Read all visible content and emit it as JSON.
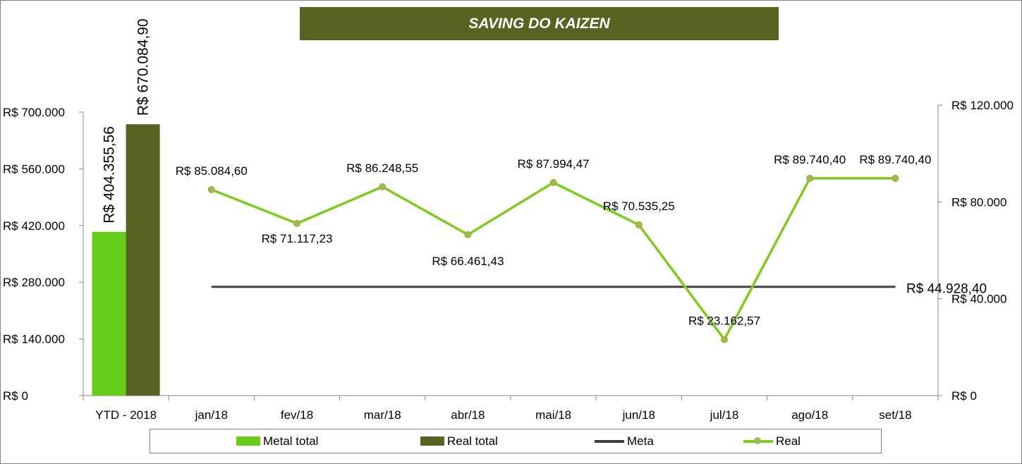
{
  "title": "SAVING DO KAIZEN",
  "colors": {
    "metal_total": "#66cc1a",
    "real_total": "#596221",
    "meta": "#404040",
    "real_line": "#7ecb20",
    "real_marker": "#9bbb59",
    "banner": "#596221"
  },
  "chart_data": {
    "type": "combo bar + line",
    "categories": [
      "YTD - 2018",
      "jan/18",
      "fev/18",
      "mar/18",
      "abr/18",
      "mai/18",
      "jun/18",
      "jul/18",
      "ago/18",
      "set/18"
    ],
    "left_axis": {
      "ylim": [
        0,
        700000
      ],
      "ticks": [
        "R$ 0",
        "R$ 140.000",
        "R$ 280.000",
        "R$ 420.000",
        "R$ 560.000",
        "R$ 700.000"
      ]
    },
    "right_axis": {
      "ylim": [
        0,
        120000
      ],
      "ticks": [
        "R$ 0",
        "R$ 40.000",
        "R$ 80.000",
        "R$ 120.000"
      ]
    },
    "bars": [
      {
        "name": "Metal total",
        "category": "YTD - 2018",
        "value": 404355.56,
        "label": "R$ 404.355,56"
      },
      {
        "name": "Real total",
        "category": "YTD - 2018",
        "value": 670084.9,
        "label": "R$ 670.084,90"
      }
    ],
    "meta": {
      "name": "Meta",
      "value": 44928.4,
      "label": "R$ 44.928,40"
    },
    "real": {
      "name": "Real",
      "values": [
        85084.6,
        71117.23,
        86248.55,
        66461.43,
        87994.47,
        70535.25,
        23162.57,
        89740.4,
        89740.4
      ],
      "labels": [
        "R$ 85.084,60",
        "R$ 71.117,23",
        "R$ 86.248,55",
        "R$ 66.461,43",
        "R$ 87.994,47",
        "R$ 70.535,25",
        "R$ 23.162,57",
        "R$ 89.740,40",
        "R$ 89.740,40"
      ]
    },
    "legend": [
      "Metal total",
      "Real total",
      "Meta",
      "Real"
    ],
    "legend_position": "bottom"
  }
}
